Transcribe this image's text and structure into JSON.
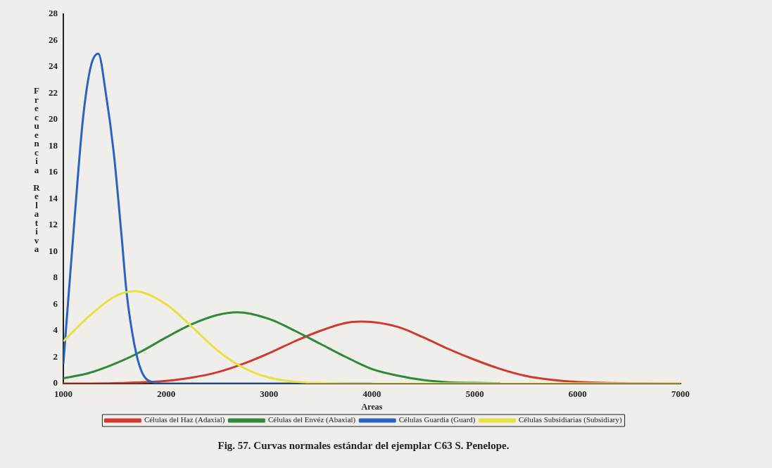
{
  "chart_data": {
    "type": "line",
    "title": "Fig. 57. Curvas normales estándar del ejemplar C63 S. Penelope.",
    "xlabel": "Areas",
    "ylabel": "Frecuencia Relativa",
    "xlim": [
      1000,
      7000
    ],
    "xticks": [
      1000,
      2000,
      3000,
      4000,
      5000,
      6000,
      7000
    ],
    "ylim": [
      0,
      28
    ],
    "yticks": [
      0,
      2,
      4,
      6,
      8,
      10,
      12,
      14,
      16,
      18,
      20,
      22,
      24,
      26,
      28
    ],
    "grid": false,
    "legend": "bottom",
    "marker": "none",
    "line_style": "solid",
    "series": [
      {
        "name": "Células del Haz (Adaxial)",
        "color": "#d03a2e",
        "x": [
          1000,
          1500,
          2000,
          2250,
          2500,
          2750,
          3000,
          3250,
          3500,
          3750,
          3920,
          4250,
          4500,
          4750,
          5000,
          5250,
          5500,
          5750,
          6000,
          6500,
          7000
        ],
        "values": [
          0,
          0.03,
          0.2,
          0.45,
          0.86,
          1.5,
          2.3,
          3.2,
          4.0,
          4.6,
          4.7,
          4.3,
          3.5,
          2.6,
          1.8,
          1.1,
          0.57,
          0.28,
          0.12,
          0.02,
          0
        ]
      },
      {
        "name": "Células del Envéz (Abaxial)",
        "color": "#2e8a3a",
        "x": [
          1000,
          1250,
          1500,
          1750,
          2000,
          2250,
          2500,
          2690,
          3000,
          3250,
          3500,
          3750,
          4000,
          4250,
          4500,
          4750,
          5000,
          5250
        ],
        "values": [
          0.4,
          0.8,
          1.5,
          2.4,
          3.5,
          4.5,
          5.2,
          5.4,
          4.9,
          4.0,
          3.0,
          2.0,
          1.1,
          0.6,
          0.27,
          0.1,
          0.05,
          0.02
        ]
      },
      {
        "name": "Células Guardia (Guard)",
        "color": "#2a64c0",
        "x": [
          1000,
          1112,
          1190,
          1266,
          1340,
          1413,
          1490,
          1566,
          1615,
          1692,
          1762,
          1867,
          2000,
          3000,
          4000
        ],
        "values": [
          1.5,
          12.8,
          20,
          24,
          25,
          22,
          17.5,
          11.2,
          6.9,
          2.9,
          0.9,
          0.1,
          0,
          0,
          0
        ]
      },
      {
        "name": "Células Subsidiarias (Subsidiary)",
        "color": "#e8e040",
        "x": [
          1000,
          1250,
          1500,
          1690,
          2000,
          2250,
          2500,
          2750,
          3000,
          3250,
          3500,
          4000,
          5000,
          6000,
          7000
        ],
        "values": [
          3.2,
          5.1,
          6.6,
          7.0,
          6.0,
          4.3,
          2.5,
          1.2,
          0.45,
          0.14,
          0.04,
          0,
          0,
          0,
          0
        ]
      }
    ]
  }
}
